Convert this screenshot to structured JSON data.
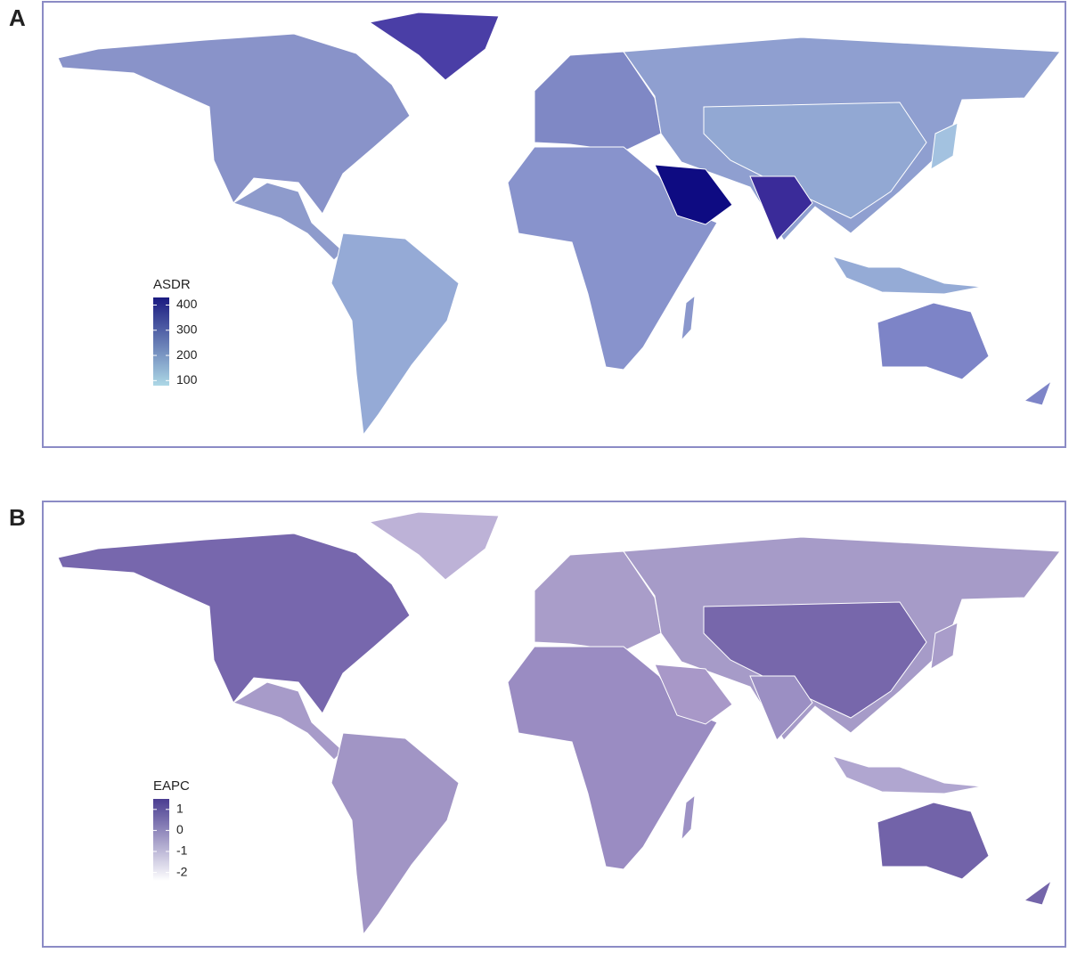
{
  "chart_data": [
    {
      "type": "choropleth",
      "panel_label": "A",
      "legend_title": "ASDR",
      "lim": [
        80,
        430
      ],
      "ticks": [
        100,
        200,
        300,
        400
      ],
      "colors": [
        "#add8e6",
        "#1a1a80"
      ]
    },
    {
      "type": "choropleth",
      "panel_label": "B",
      "legend_title": "EAPC",
      "lim": [
        -2.4,
        1.5
      ],
      "ticks": [
        1,
        0,
        -1,
        -2
      ],
      "colors": [
        "#ffffff",
        "#4a3d91"
      ]
    }
  ]
}
